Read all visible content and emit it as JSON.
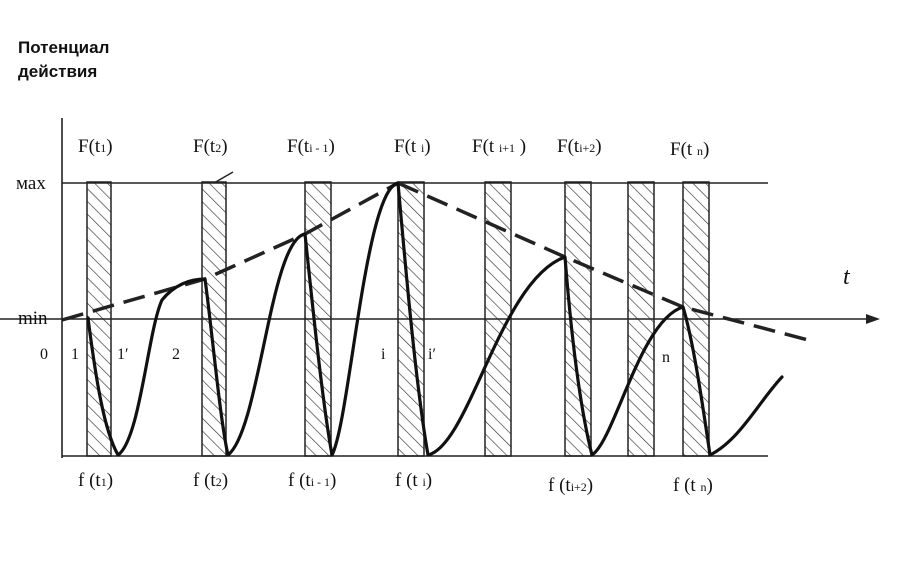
{
  "yaxis_title": {
    "line1": "Потенциал",
    "line2": "действия"
  },
  "xaxis_title": "t",
  "level_max": "мах",
  "level_min": "min",
  "top_labels": [
    {
      "text": "F(t1)",
      "main": "F(t",
      "sub": "1",
      "tail": ")"
    },
    {
      "text": "F(t2)",
      "main": "F(t",
      "sub": "2",
      "tail": ")"
    },
    {
      "text": "F(ti - 1)",
      "main": "F(t",
      "sub": "i - 1",
      "tail": ")"
    },
    {
      "text": "F(t i)",
      "main": "F(t ",
      "sub": "i",
      "tail": ")"
    },
    {
      "text": "F(t i+1 )",
      "main": "F(t ",
      "sub": "i+1",
      "tail": " )"
    },
    {
      "text": "F(ti+2)",
      "main": "F(t",
      "sub": "i+2",
      "tail": ")"
    },
    {
      "text": "F(t n)",
      "main": "F(t ",
      "sub": "n",
      "tail": ")"
    }
  ],
  "bottom_labels": [
    {
      "text": "f (t1)",
      "main": "f (t",
      "sub": "1",
      "tail": ")"
    },
    {
      "text": "f (t2)",
      "main": "f (t",
      "sub": "2",
      "tail": ")"
    },
    {
      "text": "f (ti - 1)",
      "main": "f (t",
      "sub": "i - 1",
      "tail": ")"
    },
    {
      "text": "f (t i)",
      "main": "f (t ",
      "sub": "i",
      "tail": ")"
    },
    {
      "text": "f (ti+2)",
      "main": "f (t",
      "sub": "i+2",
      "tail": ")"
    },
    {
      "text": "f (t n)",
      "main": "f (t ",
      "sub": "n",
      "tail": ")"
    }
  ],
  "interval_labels": [
    "0",
    "1",
    "1′",
    "2",
    "i",
    "i′",
    "n"
  ],
  "colors": {
    "ink": "#111111",
    "line": "#222222"
  }
}
